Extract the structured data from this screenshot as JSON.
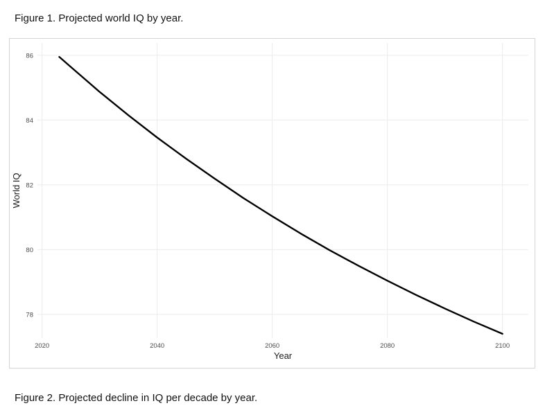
{
  "captions": {
    "figure1": "Figure 1. Projected world IQ by year.",
    "figure2": "Figure 2. Projected decline in IQ per decade by year."
  },
  "colors": {
    "line": "#000000",
    "grid": "#ebebeb",
    "axis_text": "#4d4d4d",
    "axis_title": "#1a1a1a",
    "panel_border": "#d4d4d4",
    "background": "#ffffff"
  },
  "chart_data": {
    "type": "line",
    "title": "",
    "xlabel": "Year",
    "ylabel": "World IQ",
    "x_ticks": [
      2020,
      2040,
      2060,
      2080,
      2100
    ],
    "y_ticks": [
      78,
      80,
      82,
      84,
      86
    ],
    "xlim": [
      2019.2,
      2104.5
    ],
    "ylim": [
      77.27,
      86.38
    ],
    "grid": true,
    "legend": "none",
    "series": [
      {
        "name": "Projected world IQ",
        "x": [
          2023,
          2025,
          2030,
          2035,
          2040,
          2045,
          2050,
          2055,
          2060,
          2065,
          2070,
          2075,
          2080,
          2085,
          2090,
          2095,
          2100
        ],
        "y": [
          85.95,
          85.64,
          84.87,
          84.15,
          83.46,
          82.81,
          82.19,
          81.59,
          81.03,
          80.49,
          79.98,
          79.5,
          79.04,
          78.6,
          78.18,
          77.78,
          77.4
        ]
      }
    ]
  }
}
